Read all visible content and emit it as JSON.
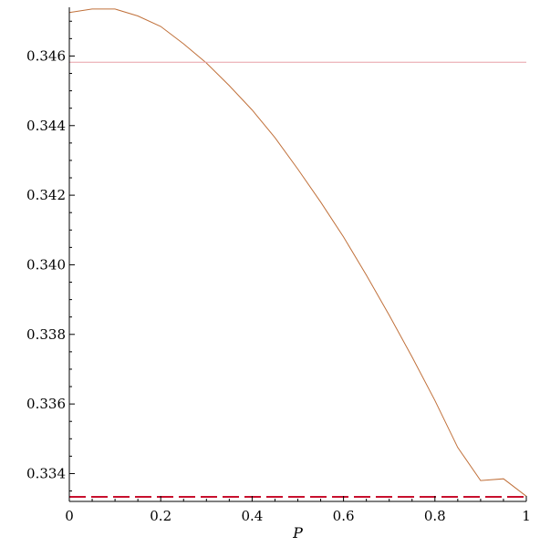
{
  "chart_data": {
    "type": "line",
    "title": "",
    "xlabel": "P",
    "ylabel": "",
    "xlim": [
      0,
      1
    ],
    "ylim": [
      0.3332,
      0.3474
    ],
    "xticks": [
      0,
      0.2,
      0.4,
      0.6,
      0.8,
      1
    ],
    "xtick_labels": [
      "0",
      "0.2",
      "0.4",
      "0.6",
      "0.8",
      "1"
    ],
    "yticks": [
      0.334,
      0.336,
      0.338,
      0.34,
      0.342,
      0.344,
      0.346
    ],
    "ytick_labels": [
      "0.334",
      "0.336",
      "0.338",
      "0.340",
      "0.342",
      "0.344",
      "0.346"
    ],
    "grid": false,
    "legend": "none",
    "series": [
      {
        "style": "solid",
        "color": "#c0703a",
        "x": [
          0,
          0.05,
          0.1,
          0.15,
          0.2,
          0.25,
          0.3,
          0.35,
          0.4,
          0.45,
          0.5,
          0.55,
          0.6,
          0.65,
          0.7,
          0.75,
          0.8,
          0.85,
          0.9,
          0.95,
          1
        ],
        "y": [
          0.34725,
          0.34735,
          0.34735,
          0.34715,
          0.34685,
          0.34635,
          0.3458,
          0.34515,
          0.34445,
          0.34365,
          0.34275,
          0.3418,
          0.3408,
          0.3397,
          0.33855,
          0.33735,
          0.3361,
          0.33475,
          0.3338,
          0.33385,
          0.33335
        ]
      },
      {
        "style": "solid",
        "color": "#e8a0a8",
        "x": [
          0,
          1
        ],
        "y": [
          0.34582,
          0.34582
        ]
      },
      {
        "style": "dashed",
        "color": "#c8102e",
        "x": [
          0,
          1
        ],
        "y": [
          0.33333,
          0.33333
        ]
      }
    ]
  }
}
